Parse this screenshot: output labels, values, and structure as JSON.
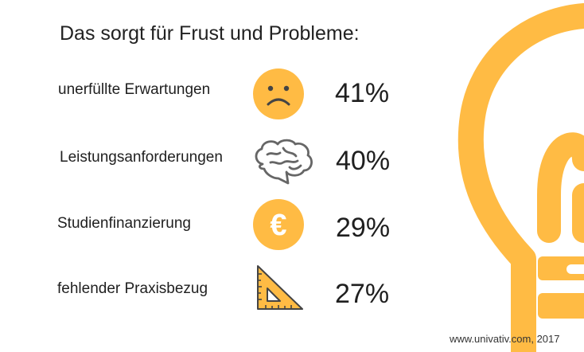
{
  "title": "Das sorgt für Frust und Probleme:",
  "chart_data": {
    "type": "table",
    "title": "Das sorgt für Frust und Probleme:",
    "rows": [
      {
        "label": "unerfüllte Erwartungen",
        "value": 41,
        "display": "41%",
        "icon": "sad-face-icon"
      },
      {
        "label": "Leistungsanforderungen",
        "value": 40,
        "display": "40%",
        "icon": "brain-icon"
      },
      {
        "label": "Studienfinanzierung",
        "value": 29,
        "display": "29%",
        "icon": "euro-icon"
      },
      {
        "label": "fehlender Praxisbezug",
        "value": 27,
        "display": "27%",
        "icon": "set-square-icon"
      }
    ]
  },
  "source": "www.univativ.com, 2017",
  "colors": {
    "accent": "#ffbb44",
    "icon_line": "#666666",
    "text": "#1f1f1f"
  }
}
